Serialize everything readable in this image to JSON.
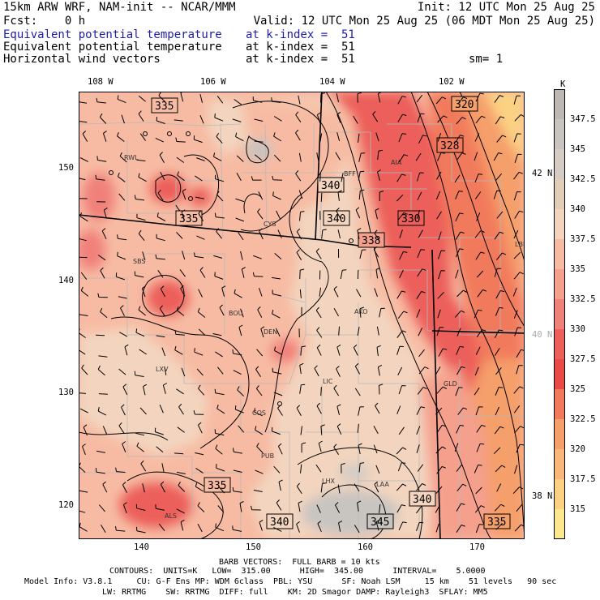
{
  "header": {
    "title": "15km ARW WRF, NAM-init -- NCAR/MMM",
    "init": "Init: 12 UTC Mon 25 Aug 25",
    "fcst": "Fcst:    0 h",
    "valid": "Valid: 12 UTC Mon 25 Aug 25 (06 MDT Mon 25 Aug 25)",
    "lines": [
      {
        "label": "Equivalent potential temperature",
        "level": "at k-index =  51",
        "color": "#1c1ca8"
      },
      {
        "label": "Equivalent potential temperature",
        "level": "at k-index =  51",
        "color": "#000000"
      },
      {
        "label": "Horizontal wind vectors",
        "level": "at k-index =  51",
        "color": "#000000"
      }
    ],
    "smoothing": "sm= 1"
  },
  "map": {
    "lon_labels_top": [
      "108 W",
      "106 W",
      "104 W",
      "102 W"
    ],
    "lat_labels_right": [
      {
        "text": "42 N",
        "color": "#000000"
      },
      {
        "text": "40 N",
        "color": "#aaaaaa"
      },
      {
        "text": "38 N",
        "color": "#000000"
      }
    ],
    "grid_x_labels": [
      "140",
      "150",
      "160",
      "170"
    ],
    "grid_y_labels": [
      "150",
      "140",
      "130",
      "120"
    ],
    "cities": [
      "RWL",
      "BFF",
      "AIA",
      "CYS",
      "SBS",
      "BOU",
      "DEN",
      "AKO",
      "LXV",
      "LIC",
      "GLD",
      "COS",
      "PUB",
      "LHX",
      "LAA",
      "ALS",
      "LBF"
    ],
    "contour_labels": [
      "335",
      "320",
      "328",
      "340",
      "340",
      "335",
      "330",
      "338",
      "335",
      "340",
      "340",
      "345",
      "335"
    ]
  },
  "colorbar": {
    "unit": "K",
    "labels": [
      "347.5",
      "345",
      "342.5",
      "340",
      "337.5",
      "335",
      "332.5",
      "330",
      "327.5",
      "325",
      "322.5",
      "320",
      "317.5",
      "315"
    ],
    "colors": [
      "#c8c4c0",
      "#d5ccc4",
      "#e2cdb8",
      "#f3d5bf",
      "#f7bba3",
      "#f4a08d",
      "#f0807a",
      "#ec5f5a",
      "#ea4a47",
      "#f27a5c",
      "#f59f6a",
      "#f9b87a",
      "#fbd283",
      "#fce88f"
    ]
  },
  "footer": {
    "barb": "BARB VECTORS:  FULL BARB = 10 kts",
    "contours": "CONTOURS:  UNITS=K   LOW=  315.00      HIGH=  345.00      INTERVAL=    5.0000",
    "model1": "Model Info: V3.8.1     CU: G-F Ens MP: WDM 6class  PBL: YSU      SF: Noah LSM     15 km    51 levels   90 sec",
    "model2": "LW: RRTMG    SW: RRTMG  DIFF: full    KM: 2D Smagor DAMP: Rayleigh3  SFLAY: MM5"
  }
}
